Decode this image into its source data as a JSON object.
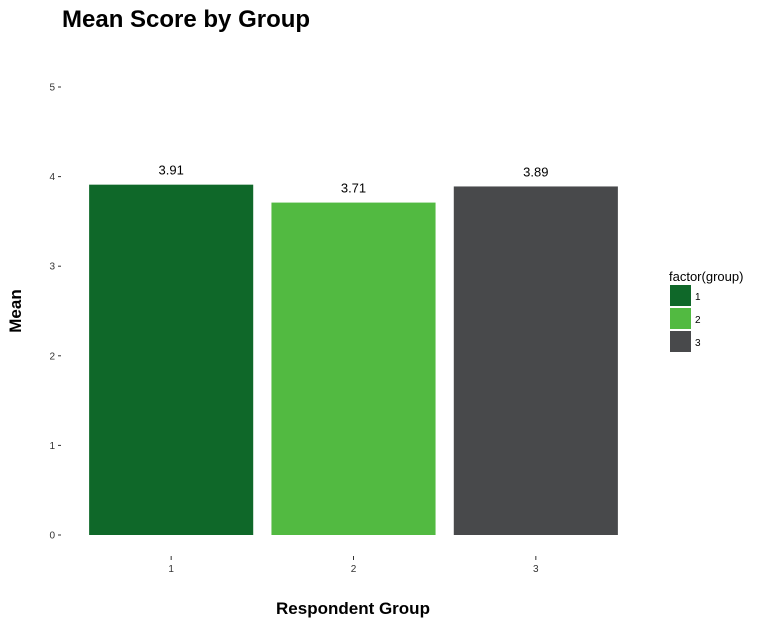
{
  "chart_data": {
    "type": "bar",
    "title": "Mean Score by Group",
    "xlabel": "Respondent Group",
    "ylabel": "Mean",
    "categories": [
      "1",
      "2",
      "3"
    ],
    "values": [
      3.91,
      3.71,
      3.89
    ],
    "value_labels": [
      "3.91",
      "3.71",
      "3.89"
    ],
    "colors": [
      "#0f6829",
      "#52ba41",
      "#48494b"
    ],
    "ylim": [
      0,
      5
    ],
    "yticks": [
      0,
      1,
      2,
      3,
      4,
      5
    ],
    "grid": false,
    "legend": {
      "title": "factor(group)",
      "position": "right",
      "entries": [
        "1",
        "2",
        "3"
      ]
    }
  }
}
